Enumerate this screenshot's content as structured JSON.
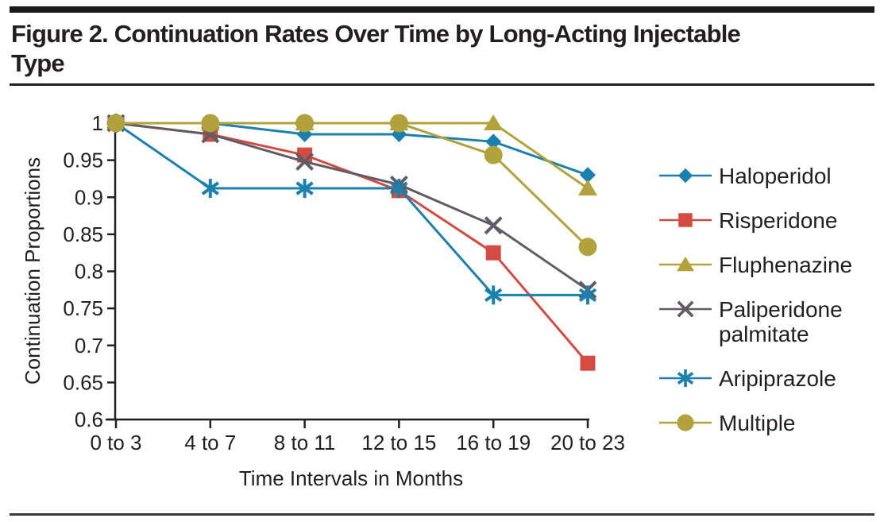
{
  "figure": {
    "title": "Figure 2. Continuation Rates Over Time by Long-Acting Injectable Type",
    "title_lines": [
      "Figure 2. Continuation Rates Over Time by Long-Acting Injectable",
      "Type"
    ]
  },
  "chart_data": {
    "type": "line",
    "title": "Figure 2. Continuation Rates Over Time by Long-Acting Injectable Type",
    "xlabel": "Time Intervals in Months",
    "ylabel": "Continuation Proportions",
    "categories": [
      "0 to 3",
      "4 to 7",
      "8 to 11",
      "12 to 15",
      "16 to 19",
      "20 to 23"
    ],
    "ylim": [
      0.6,
      1.0
    ],
    "yticks": [
      1,
      0.95,
      0.9,
      0.85,
      0.8,
      0.75,
      0.7,
      0.65,
      0.6
    ],
    "ytick_labels": [
      "1",
      "0.95",
      "0.9",
      "0.85",
      "0.8",
      "0.75",
      "0.7",
      "0.65",
      "0.6"
    ],
    "grid": false,
    "legend_position": "right",
    "series": [
      {
        "name": "Haloperidol",
        "marker": "diamond",
        "color": "#1b80ad",
        "values": [
          1,
          1,
          0.985,
          0.985,
          0.975,
          0.93
        ]
      },
      {
        "name": "Risperidone",
        "marker": "square",
        "color": "#d34b43",
        "values": [
          1,
          0.985,
          0.957,
          0.909,
          0.825,
          0.676
        ]
      },
      {
        "name": "Fluphenazine",
        "marker": "triangle",
        "color": "#b2a23c",
        "values": [
          1,
          1,
          1,
          1,
          1,
          0.912
        ]
      },
      {
        "name": "Paliperidone palmitate",
        "marker": "x",
        "color": "#615b64",
        "values": [
          1,
          0.985,
          0.948,
          0.917,
          0.862,
          0.775
        ]
      },
      {
        "name": "Aripiprazole",
        "marker": "asterisk",
        "color": "#1b80ad",
        "values": [
          1,
          0.912,
          0.912,
          0.912,
          0.768,
          0.768
        ]
      },
      {
        "name": "Multiple",
        "marker": "circle",
        "color": "#b2a23c",
        "values": [
          1,
          1,
          1,
          1,
          0.957,
          0.833
        ]
      }
    ]
  }
}
